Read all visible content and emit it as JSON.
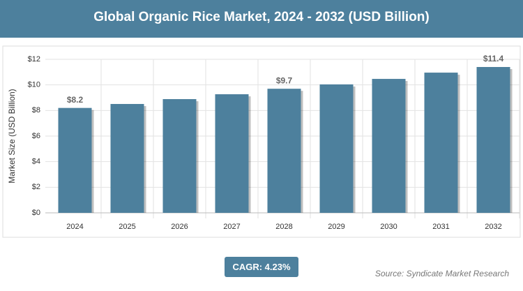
{
  "chart_data": {
    "type": "bar",
    "title": "Global Organic Rice Market, 2024 - 2032 (USD Billion)",
    "y_label": "Market Size (USD Billion)",
    "categories": [
      "2024",
      "2025",
      "2026",
      "2027",
      "2028",
      "2029",
      "2030",
      "2031",
      "2032"
    ],
    "values": [
      8.2,
      8.51,
      8.89,
      9.27,
      9.7,
      10.04,
      10.47,
      10.96,
      11.4
    ],
    "value_labels": [
      "$8.2",
      null,
      null,
      null,
      "$9.7",
      null,
      null,
      null,
      "$11.4"
    ],
    "color": "#4d809d",
    "ylim": [
      0,
      12
    ],
    "yticks": [
      {
        "value": 0,
        "label": "$0"
      },
      {
        "value": 2,
        "label": "$2"
      },
      {
        "value": 4,
        "label": "$4"
      },
      {
        "value": 6,
        "label": "$6"
      },
      {
        "value": 8,
        "label": "$8"
      },
      {
        "value": 10,
        "label": "$10"
      },
      {
        "value": 12,
        "label": "$12"
      }
    ],
    "grid": true,
    "cagr": "CAGR: 4.23%",
    "source": "Source: Syndicate Market Research"
  }
}
